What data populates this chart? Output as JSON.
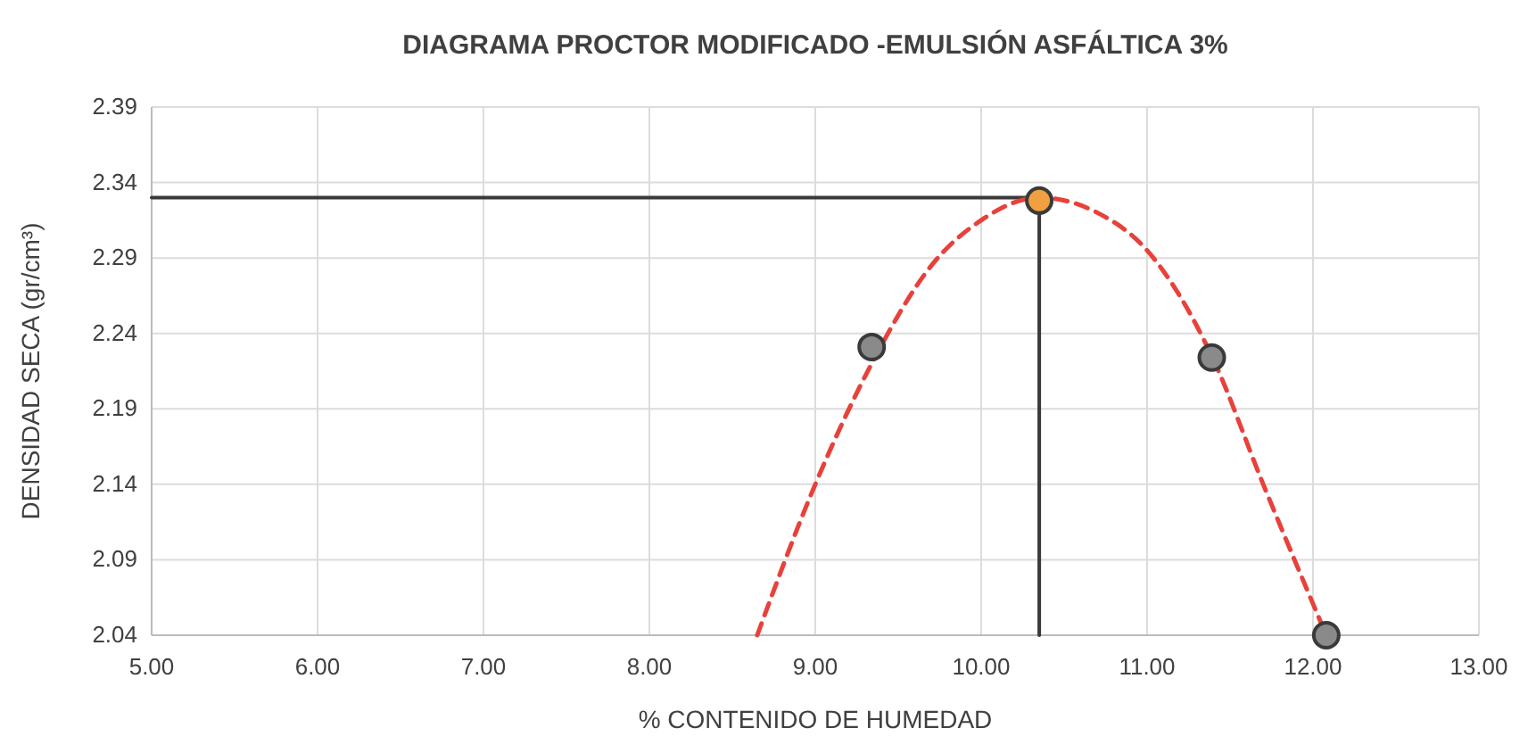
{
  "chart_data": {
    "type": "scatter",
    "title": "DIAGRAMA PROCTOR MODIFICADO -EMULSIÓN ASFÁLTICA 3%",
    "xlabel": "% CONTENIDO DE HUMEDAD",
    "ylabel": "DENSIDAD SECA (gr/cm³)",
    "xlim": [
      5,
      13
    ],
    "xticks": [
      {
        "value": 5,
        "label": "5.00"
      },
      {
        "value": 6,
        "label": "6.00"
      },
      {
        "value": 7,
        "label": "7.00"
      },
      {
        "value": 8,
        "label": "8.00"
      },
      {
        "value": 9,
        "label": "9.00"
      },
      {
        "value": 10,
        "label": "10.00"
      },
      {
        "value": 11,
        "label": "11.00"
      },
      {
        "value": 12,
        "label": "12.00"
      },
      {
        "value": 13,
        "label": "13.00"
      }
    ],
    "ylim": [
      2.04,
      2.39
    ],
    "yticks": [
      2.04,
      2.09,
      2.14,
      2.19,
      2.24,
      2.29,
      2.34,
      2.39
    ],
    "grid": true,
    "series": [
      {
        "type": "line",
        "color": "#3a3a3a",
        "line_style": "solid",
        "marker": "none",
        "x": [
          5,
          10.35,
          10.35
        ],
        "values": [
          2.33,
          2.33,
          2.04
        ]
      },
      {
        "type": "line",
        "color": "#e8413c",
        "line_style": "dashed",
        "marker": "none",
        "x": [
          8.65,
          9.0,
          9.34,
          9.7,
          10.0,
          10.35,
          10.7,
          11.0,
          11.39,
          11.7,
          12.08
        ],
        "values": [
          2.04,
          2.14,
          2.22,
          2.285,
          2.315,
          2.33,
          2.32,
          2.295,
          2.225,
          2.14,
          2.04
        ]
      },
      {
        "marker": "circle",
        "colors": [
          "#8a8a8a",
          "#f0a040",
          "#8a8a8a",
          "#8a8a8a"
        ],
        "x": [
          9.34,
          10.35,
          11.39,
          12.08
        ],
        "values": [
          2.231,
          2.328,
          2.224,
          2.04
        ]
      }
    ]
  }
}
